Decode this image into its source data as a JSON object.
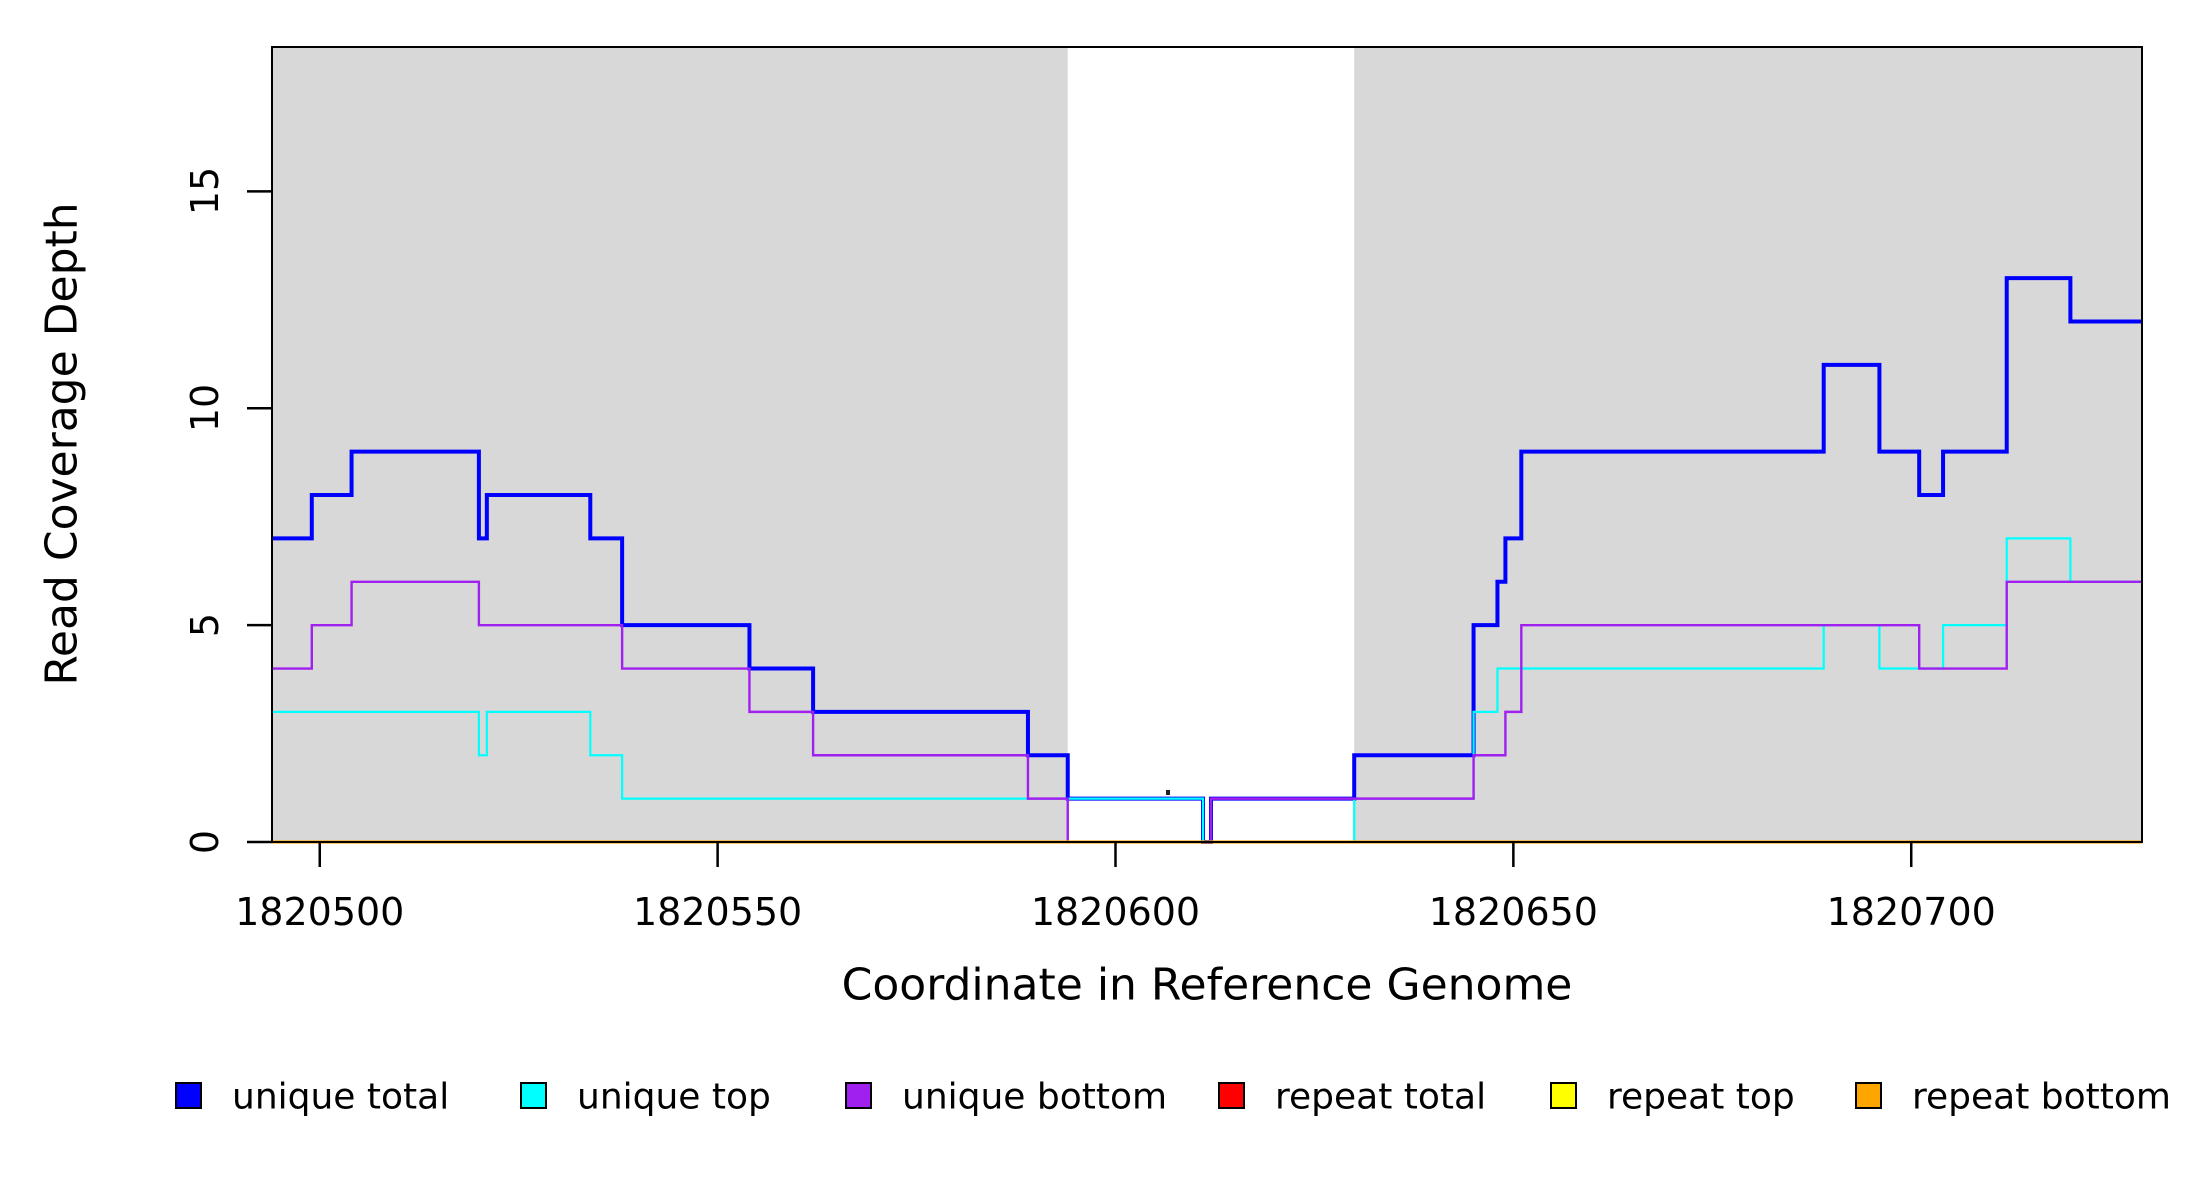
{
  "figure": {
    "y_axis_title": "Read Coverage Depth",
    "x_axis_title": "Coordinate in Reference Genome"
  },
  "chart_data": {
    "type": "line",
    "subtype": "step",
    "title": "",
    "xlabel": "Coordinate in Reference Genome",
    "ylabel": "Read Coverage Depth",
    "xlim": [
      1820494,
      1820729
    ],
    "ylim": [
      0,
      18.33
    ],
    "x_ticks": [
      1820500,
      1820550,
      1820600,
      1820650,
      1820700
    ],
    "y_ticks": [
      0,
      5,
      10,
      15
    ],
    "grid": false,
    "legend_position": "bottom",
    "plot_background": "#FFFFFF",
    "shaded_band_color": "#D8D8D8",
    "shaded_regions": [
      {
        "x0": 1820494,
        "x1": 1820594
      },
      {
        "x0": 1820630,
        "x1": 1820729
      }
    ],
    "series": [
      {
        "name": "unique total",
        "color": "#0000FF",
        "line_width": 4,
        "steps": [
          [
            1820494,
            7
          ],
          [
            1820499,
            8
          ],
          [
            1820504,
            9
          ],
          [
            1820520,
            7
          ],
          [
            1820521,
            8
          ],
          [
            1820534,
            7
          ],
          [
            1820538,
            5
          ],
          [
            1820554,
            4
          ],
          [
            1820562,
            3
          ],
          [
            1820589,
            2
          ],
          [
            1820594,
            1
          ],
          [
            1820611,
            0
          ],
          [
            1820612,
            1
          ],
          [
            1820630,
            2
          ],
          [
            1820645,
            5
          ],
          [
            1820648,
            6
          ],
          [
            1820649,
            7
          ],
          [
            1820651,
            9
          ],
          [
            1820689,
            11
          ],
          [
            1820696,
            9
          ],
          [
            1820701,
            8
          ],
          [
            1820704,
            9
          ],
          [
            1820712,
            13
          ],
          [
            1820720,
            12
          ]
        ],
        "end_x": 1820729
      },
      {
        "name": "unique top",
        "color": "#00FFFF",
        "line_width": 2.2,
        "steps": [
          [
            1820494,
            3
          ],
          [
            1820520,
            2
          ],
          [
            1820521,
            3
          ],
          [
            1820534,
            2
          ],
          [
            1820538,
            1
          ],
          [
            1820611,
            0
          ],
          [
            1820630,
            1
          ],
          [
            1820645,
            3
          ],
          [
            1820648,
            4
          ],
          [
            1820689,
            5
          ],
          [
            1820696,
            4
          ],
          [
            1820704,
            5
          ],
          [
            1820712,
            7
          ],
          [
            1820720,
            6
          ]
        ],
        "end_x": 1820729
      },
      {
        "name": "unique bottom",
        "color": "#A020F0",
        "line_width": 2.4,
        "steps": [
          [
            1820494,
            4
          ],
          [
            1820499,
            5
          ],
          [
            1820504,
            6
          ],
          [
            1820520,
            5
          ],
          [
            1820538,
            4
          ],
          [
            1820554,
            3
          ],
          [
            1820562,
            2
          ],
          [
            1820589,
            1
          ],
          [
            1820594,
            0
          ],
          [
            1820612,
            1
          ],
          [
            1820645,
            2
          ],
          [
            1820649,
            3
          ],
          [
            1820651,
            5
          ],
          [
            1820701,
            4
          ],
          [
            1820712,
            6
          ]
        ],
        "end_x": 1820729
      },
      {
        "name": "repeat total",
        "color": "#FF0000",
        "line_width": 2,
        "steps": [
          [
            1820494,
            0
          ]
        ],
        "end_x": 1820729
      },
      {
        "name": "repeat top",
        "color": "#FFFF00",
        "line_width": 2,
        "steps": [
          [
            1820494,
            0
          ]
        ],
        "end_x": 1820729
      },
      {
        "name": "repeat bottom",
        "color": "#FFA500",
        "line_width": 3.2,
        "steps": [
          [
            1820494,
            0
          ]
        ],
        "end_x": 1820729
      }
    ]
  },
  "legend": {
    "items": [
      {
        "label": "unique total",
        "color": "#0000FF"
      },
      {
        "label": "unique top",
        "color": "#00FFFF"
      },
      {
        "label": "unique bottom",
        "color": "#A020F0"
      },
      {
        "label": "repeat total",
        "color": "#FF0000"
      },
      {
        "label": "repeat top",
        "color": "#FFFF00"
      },
      {
        "label": "repeat bottom",
        "color": "#FFA500"
      }
    ]
  }
}
